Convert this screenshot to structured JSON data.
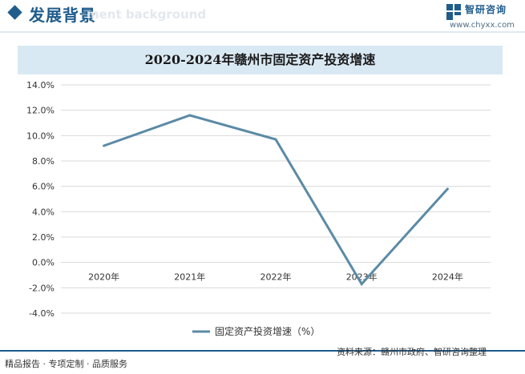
{
  "header": {
    "section_title": "发展背景",
    "section_subtitle": "ment background",
    "brand_name": "智研咨询",
    "brand_url": "www.chyxx.com"
  },
  "footer": {
    "services": "精品报告 · 专项定制 · 品质服务",
    "source": "资料来源：赣州市政府、智研咨询整理"
  },
  "chart_data": {
    "type": "line",
    "title": "2020-2024年赣州市固定资产投资增速",
    "categories": [
      "2020年",
      "2021年",
      "2022年",
      "2023年",
      "2024年"
    ],
    "series": [
      {
        "name": "固定资产投资增速（%）",
        "values": [
          9.2,
          11.6,
          9.7,
          -1.7,
          5.8
        ],
        "color": "#5b8aa6"
      }
    ],
    "ylim": [
      -4.0,
      14.0
    ],
    "yticks": [
      "14.0%",
      "12.0%",
      "10.0%",
      "8.0%",
      "6.0%",
      "4.0%",
      "2.0%",
      "0.0%",
      "-2.0%",
      "-4.0%"
    ],
    "grid": true,
    "legend_position": "bottom"
  }
}
